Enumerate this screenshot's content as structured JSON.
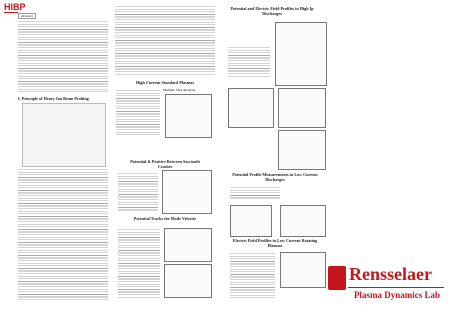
{
  "header": {
    "title": "HIBP",
    "abstract_label": "Abstract"
  },
  "sections": [
    {
      "title": "I. Principle of Heavy Ion Beam Probing"
    },
    {
      "title": "High Current Standard Plasmas",
      "subtitle": "Multiple Shot Analysis"
    },
    {
      "title": "Potential & Positive Between Sawtooth Crashes"
    },
    {
      "title": "Potential Tracks the Mode Velocity"
    },
    {
      "title": "Potential and Electric Field Profiles in High Ip Discharges"
    },
    {
      "title": "Potential Profile Measurements in Low Current Discharges"
    },
    {
      "title": "Electric Field Profiles in Low Current Rotating Plasmas"
    }
  ],
  "footer": {
    "logo": "Rensselaer",
    "lab": "Plasma Dynamics Lab"
  }
}
